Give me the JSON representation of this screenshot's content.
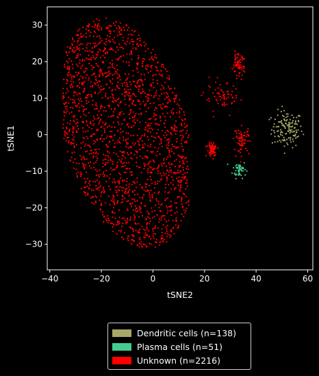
{
  "chart_data": {
    "type": "scatter",
    "xlabel": "tSNE2",
    "ylabel": "tSNE1",
    "xlim": [
      -41,
      62
    ],
    "ylim": [
      -37,
      35
    ],
    "x_ticks": [
      -40,
      -20,
      0,
      20,
      40,
      60
    ],
    "y_ticks": [
      -30,
      -20,
      -10,
      0,
      10,
      20,
      30
    ],
    "legend_position": "below",
    "series": [
      {
        "name": "Dendritic cells (n=138)",
        "color": "#a9a66a",
        "count": 138,
        "clusters": [
          {
            "cx": 52,
            "cy": 1.5,
            "sx": 3,
            "sy": 2.5
          }
        ]
      },
      {
        "name": "Plasma cells (n=51)",
        "color": "#44cc8e",
        "count": 51,
        "clusters": [
          {
            "cx": 33.5,
            "cy": -9.5,
            "sx": 1.3,
            "sy": 1.2
          }
        ]
      },
      {
        "name": "Unknown (n=2216)",
        "color": "#ff0000",
        "count": 2216,
        "clusters": [
          {
            "shape": "main",
            "xmin": -35,
            "xmax": 14,
            "ymin": -31,
            "ymax": 32
          },
          {
            "cx": 27,
            "cy": 10,
            "sx": 3.5,
            "sy": 2
          },
          {
            "cx": 33,
            "cy": 19,
            "sx": 1.2,
            "sy": 1.5
          },
          {
            "cx": 34.5,
            "cy": -1.5,
            "sx": 1.5,
            "sy": 1.8
          },
          {
            "cx": 23,
            "cy": -4,
            "sx": 1,
            "sy": 1
          }
        ]
      }
    ]
  }
}
